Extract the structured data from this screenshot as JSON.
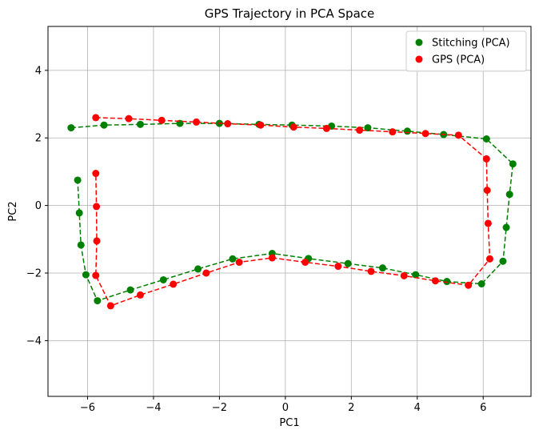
{
  "chart_data": {
    "type": "scatter",
    "title": "GPS Trajectory in PCA Space",
    "xlabel": "PC1",
    "ylabel": "PC2",
    "xlim": [
      -7.2,
      7.45
    ],
    "ylim": [
      -5.65,
      5.3
    ],
    "xticks": [
      -6,
      -4,
      -2,
      0,
      2,
      4,
      6
    ],
    "yticks": [
      -4,
      -2,
      0,
      2,
      4
    ],
    "grid": true,
    "legend_position": "top-right",
    "series": [
      {
        "name": "Stitching (PCA)",
        "color": "#008000",
        "line_style": "dashed",
        "x": [
          -6.5,
          -5.5,
          -4.4,
          -3.2,
          -2.0,
          -0.8,
          0.2,
          1.4,
          2.5,
          3.7,
          4.8,
          6.1,
          6.9,
          6.8,
          6.7,
          6.6,
          5.95,
          4.9,
          3.95,
          2.95,
          1.9,
          0.7,
          -0.4,
          -1.6,
          -2.65,
          -3.7,
          -4.7,
          -5.7,
          -6.05,
          -6.2,
          -6.25,
          -6.3
        ],
        "y": [
          2.3,
          2.38,
          2.4,
          2.43,
          2.43,
          2.4,
          2.38,
          2.35,
          2.3,
          2.2,
          2.1,
          1.97,
          1.23,
          0.33,
          -0.65,
          -1.65,
          -2.32,
          -2.25,
          -2.05,
          -1.85,
          -1.72,
          -1.57,
          -1.42,
          -1.58,
          -1.88,
          -2.2,
          -2.5,
          -2.82,
          -2.05,
          -1.17,
          -0.22,
          0.75
        ]
      },
      {
        "name": "GPS (PCA)",
        "color": "#ff0000",
        "line_style": "dashed",
        "x": [
          -5.75,
          -4.75,
          -3.75,
          -2.7,
          -1.75,
          -0.75,
          0.25,
          1.25,
          2.25,
          3.25,
          4.25,
          5.25,
          6.1,
          6.12,
          6.15,
          6.2,
          5.55,
          4.55,
          3.6,
          2.6,
          1.6,
          0.6,
          -0.4,
          -1.4,
          -2.4,
          -3.4,
          -4.4,
          -5.3,
          -5.75,
          -5.72,
          -5.73,
          -5.75
        ],
        "y": [
          2.6,
          2.57,
          2.52,
          2.47,
          2.42,
          2.38,
          2.32,
          2.28,
          2.23,
          2.18,
          2.13,
          2.08,
          1.38,
          0.45,
          -0.53,
          -1.58,
          -2.36,
          -2.23,
          -2.08,
          -1.95,
          -1.8,
          -1.68,
          -1.55,
          -1.68,
          -2.0,
          -2.33,
          -2.65,
          -2.97,
          -2.07,
          -1.05,
          -0.03,
          0.95
        ]
      }
    ]
  }
}
